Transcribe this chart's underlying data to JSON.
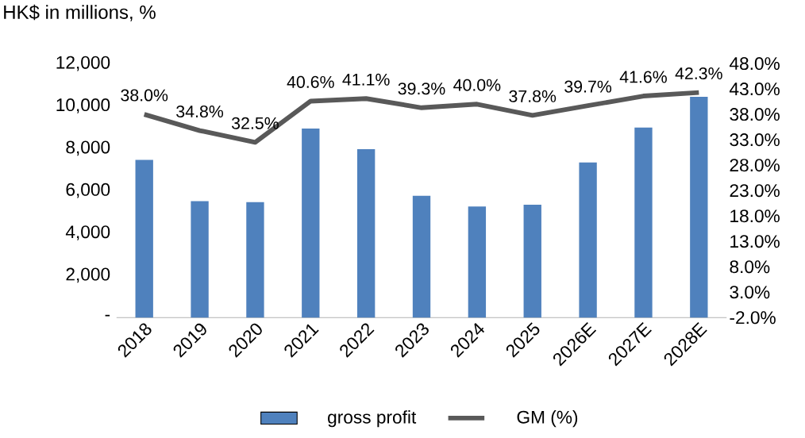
{
  "chart_data": {
    "type": "bar",
    "ylabel": "HK$ in millions, %",
    "categories": [
      "2018",
      "2019",
      "2020",
      "2021",
      "2022",
      "2023",
      "2024",
      "2025",
      "2026E",
      "2027E",
      "2028E"
    ],
    "series": [
      {
        "name": "gross profit",
        "color": "#4f81bd",
        "values": [
          7450,
          5500,
          5450,
          8930,
          7950,
          5750,
          5250,
          5330,
          7330,
          8980,
          10430
        ]
      },
      {
        "name": "GM (%)",
        "type": "line",
        "axis": "y2",
        "color": "#595959",
        "values": [
          38.0,
          34.8,
          32.5,
          40.6,
          41.1,
          39.3,
          40.0,
          37.8,
          39.7,
          41.6,
          42.3
        ],
        "value_labels": [
          "38.0%",
          "34.8%",
          "32.5%",
          "40.6%",
          "41.1%",
          "39.3%",
          "40.0%",
          "37.8%",
          "39.7%",
          "41.6%",
          "42.3%"
        ]
      }
    ],
    "ylim": [
      0,
      12000
    ],
    "yticks": [
      {
        "value": 0,
        "label": "-"
      },
      {
        "value": 2000,
        "label": "2,000"
      },
      {
        "value": 4000,
        "label": "4,000"
      },
      {
        "value": 6000,
        "label": "6,000"
      },
      {
        "value": 8000,
        "label": "8,000"
      },
      {
        "value": 10000,
        "label": "10,000"
      },
      {
        "value": 12000,
        "label": "12,000"
      }
    ],
    "y2lim": [
      -2,
      48
    ],
    "y2ticks": [
      {
        "value": -2,
        "label": "-2.0%"
      },
      {
        "value": 3,
        "label": "3.0%"
      },
      {
        "value": 8,
        "label": "8.0%"
      },
      {
        "value": 13,
        "label": "13.0%"
      },
      {
        "value": 18,
        "label": "18.0%"
      },
      {
        "value": 23,
        "label": "23.0%"
      },
      {
        "value": 28,
        "label": "28.0%"
      },
      {
        "value": 33,
        "label": "33.0%"
      },
      {
        "value": 38,
        "label": "38.0%"
      },
      {
        "value": 43,
        "label": "43.0%"
      },
      {
        "value": 48,
        "label": "48.0%"
      }
    ],
    "legend": "bottom"
  }
}
